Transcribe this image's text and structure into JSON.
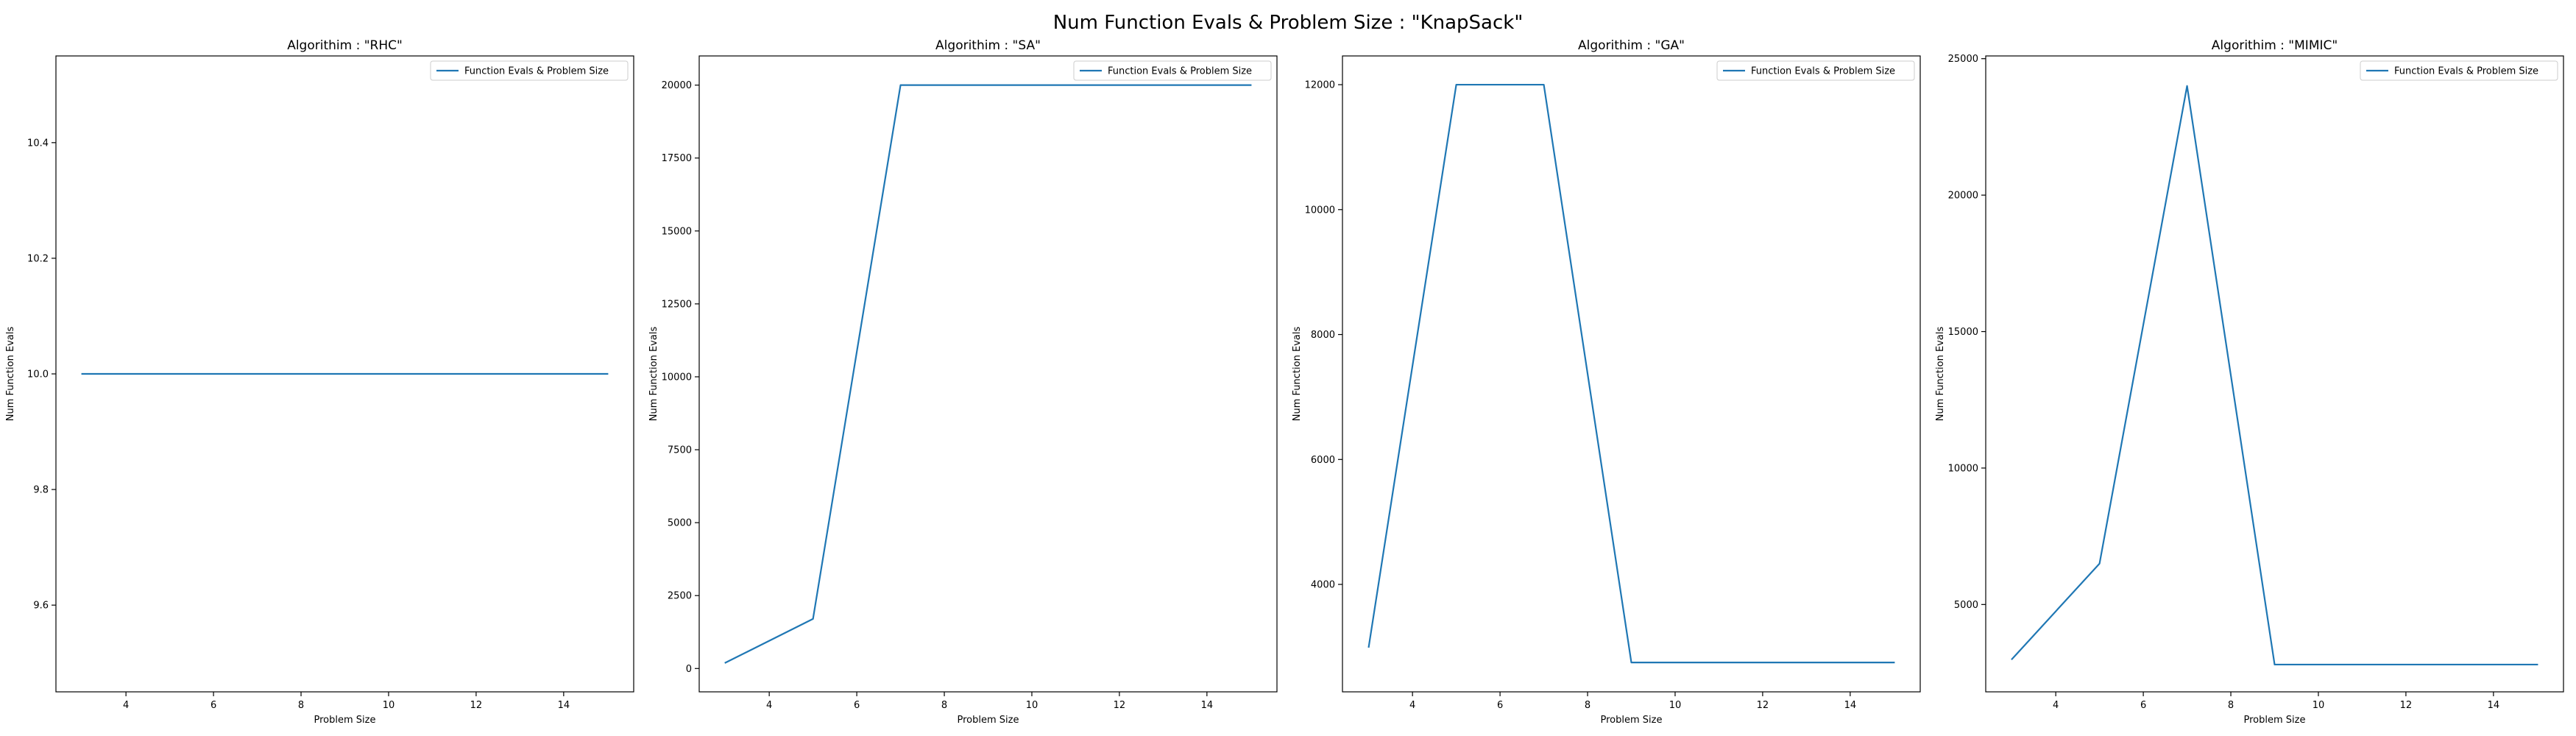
{
  "figure": {
    "title": "Num Function Evals & Problem Size : \"KnapSack\""
  },
  "colors": {
    "series": "#1f77b4",
    "axes": "#000000",
    "legend_border": "#cccccc"
  },
  "chart_data": [
    {
      "type": "line",
      "title": "Algorithim : \"RHC\"",
      "xlabel": "Problem Size",
      "ylabel": "Num Function Evals",
      "xlim": [
        2.4,
        15.6
      ],
      "ylim": [
        9.45,
        10.55
      ],
      "xticks": [
        4,
        6,
        8,
        10,
        12,
        14
      ],
      "xtick_labels": [
        "4",
        "6",
        "8",
        "10",
        "12",
        "14"
      ],
      "yticks": [
        9.6,
        9.8,
        10.0,
        10.2,
        10.4
      ],
      "ytick_labels": [
        "9.6",
        "9.8",
        "10.0",
        "10.2",
        "10.4"
      ],
      "legend": "top-right",
      "grid": false,
      "series": [
        {
          "name": "Function Evals & Problem Size",
          "x": [
            3,
            5,
            7,
            9,
            11,
            13,
            15
          ],
          "y": [
            10,
            10,
            10,
            10,
            10,
            10,
            10
          ]
        }
      ]
    },
    {
      "type": "line",
      "title": "Algorithim : \"SA\"",
      "xlabel": "Problem Size",
      "ylabel": "Num Function Evals",
      "xlim": [
        2.4,
        15.6
      ],
      "ylim": [
        -800,
        21000
      ],
      "xticks": [
        4,
        6,
        8,
        10,
        12,
        14
      ],
      "xtick_labels": [
        "4",
        "6",
        "8",
        "10",
        "12",
        "14"
      ],
      "yticks": [
        0,
        2500,
        5000,
        7500,
        10000,
        12500,
        15000,
        17500,
        20000
      ],
      "ytick_labels": [
        "0",
        "2500",
        "5000",
        "7500",
        "10000",
        "12500",
        "15000",
        "17500",
        "20000"
      ],
      "legend": "top-right",
      "grid": false,
      "series": [
        {
          "name": "Function Evals & Problem Size",
          "x": [
            3,
            5,
            7,
            9,
            11,
            13,
            15
          ],
          "y": [
            200,
            1700,
            20000,
            20000,
            20000,
            20000,
            20000
          ]
        }
      ]
    },
    {
      "type": "line",
      "title": "Algorithim : \"GA\"",
      "xlabel": "Problem Size",
      "ylabel": "Num Function Evals",
      "xlim": [
        2.4,
        15.6
      ],
      "ylim": [
        2280,
        12460
      ],
      "xticks": [
        4,
        6,
        8,
        10,
        12,
        14
      ],
      "xtick_labels": [
        "4",
        "6",
        "8",
        "10",
        "12",
        "14"
      ],
      "yticks": [
        4000,
        6000,
        8000,
        10000,
        12000
      ],
      "ytick_labels": [
        "4000",
        "6000",
        "8000",
        "10000",
        "12000"
      ],
      "legend": "top-right",
      "grid": false,
      "series": [
        {
          "name": "Function Evals & Problem Size",
          "x": [
            3,
            5,
            7,
            9,
            11,
            13,
            15
          ],
          "y": [
            3000,
            12000,
            12000,
            2750,
            2750,
            2750,
            2750
          ]
        }
      ]
    },
    {
      "type": "line",
      "title": "Algorithim : \"MIMIC\"",
      "xlabel": "Problem Size",
      "ylabel": "Num Function Evals",
      "xlim": [
        2.4,
        15.6
      ],
      "ylim": [
        1800,
        25100
      ],
      "xticks": [
        4,
        6,
        8,
        10,
        12,
        14
      ],
      "xtick_labels": [
        "4",
        "6",
        "8",
        "10",
        "12",
        "14"
      ],
      "yticks": [
        5000,
        10000,
        15000,
        20000,
        25000
      ],
      "ytick_labels": [
        "5000",
        "10000",
        "15000",
        "20000",
        "25000"
      ],
      "legend": "top-right",
      "grid": false,
      "series": [
        {
          "name": "Function Evals & Problem Size",
          "x": [
            3,
            5,
            7,
            9,
            11,
            13,
            15
          ],
          "y": [
            3000,
            6500,
            24000,
            2800,
            2800,
            2800,
            2800
          ]
        }
      ]
    }
  ]
}
